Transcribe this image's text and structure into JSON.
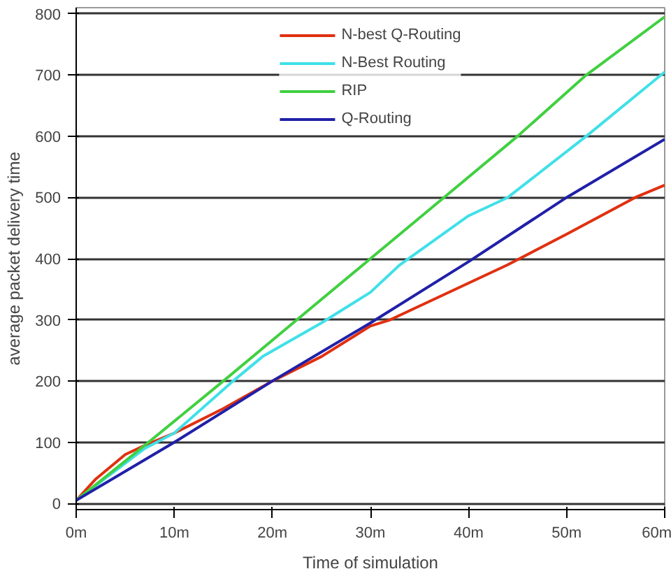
{
  "chart_data": {
    "type": "line",
    "xlabel": "Time of simulation",
    "ylabel": "average packet delivery time",
    "xlim": [
      0,
      60
    ],
    "ylim": [
      -10,
      810
    ],
    "xticks": [
      {
        "value": 0,
        "label": "0m"
      },
      {
        "value": 10,
        "label": "10m"
      },
      {
        "value": 20,
        "label": "20m"
      },
      {
        "value": 30,
        "label": "30m"
      },
      {
        "value": 40,
        "label": "40m"
      },
      {
        "value": 50,
        "label": "50m"
      },
      {
        "value": 60,
        "label": "60m"
      }
    ],
    "yticks": [
      0,
      100,
      200,
      300,
      400,
      500,
      600,
      700,
      800
    ],
    "grid": "y",
    "legend": "top",
    "line_style": "solid",
    "series": [
      {
        "name": "N-best Q-Routing",
        "color": "#e03010",
        "x": [
          0,
          2,
          5,
          7,
          10,
          15,
          20,
          25,
          30,
          32,
          40,
          44,
          50,
          57,
          60
        ],
        "values": [
          5,
          40,
          80,
          95,
          115,
          155,
          200,
          240,
          290,
          300,
          360,
          390,
          440,
          500,
          520
        ]
      },
      {
        "name": "N-Best Routing",
        "color": "#40e0e8",
        "x": [
          0,
          7,
          10,
          16,
          19,
          25,
          30,
          33,
          40,
          44,
          52,
          60
        ],
        "values": [
          5,
          90,
          115,
          200,
          240,
          295,
          345,
          390,
          470,
          500,
          600,
          705
        ]
      },
      {
        "name": "RIP",
        "color": "#40d040",
        "x": [
          0,
          7,
          15,
          22.5,
          30,
          37.5,
          45,
          52,
          60
        ],
        "values": [
          5,
          95,
          200,
          300,
          400,
          500,
          600,
          700,
          795
        ]
      },
      {
        "name": "Q-Routing",
        "color": "#2020a8",
        "x": [
          0,
          10,
          20,
          30,
          40,
          50,
          60
        ],
        "values": [
          5,
          100,
          200,
          295,
          395,
          500,
          595
        ]
      }
    ]
  }
}
